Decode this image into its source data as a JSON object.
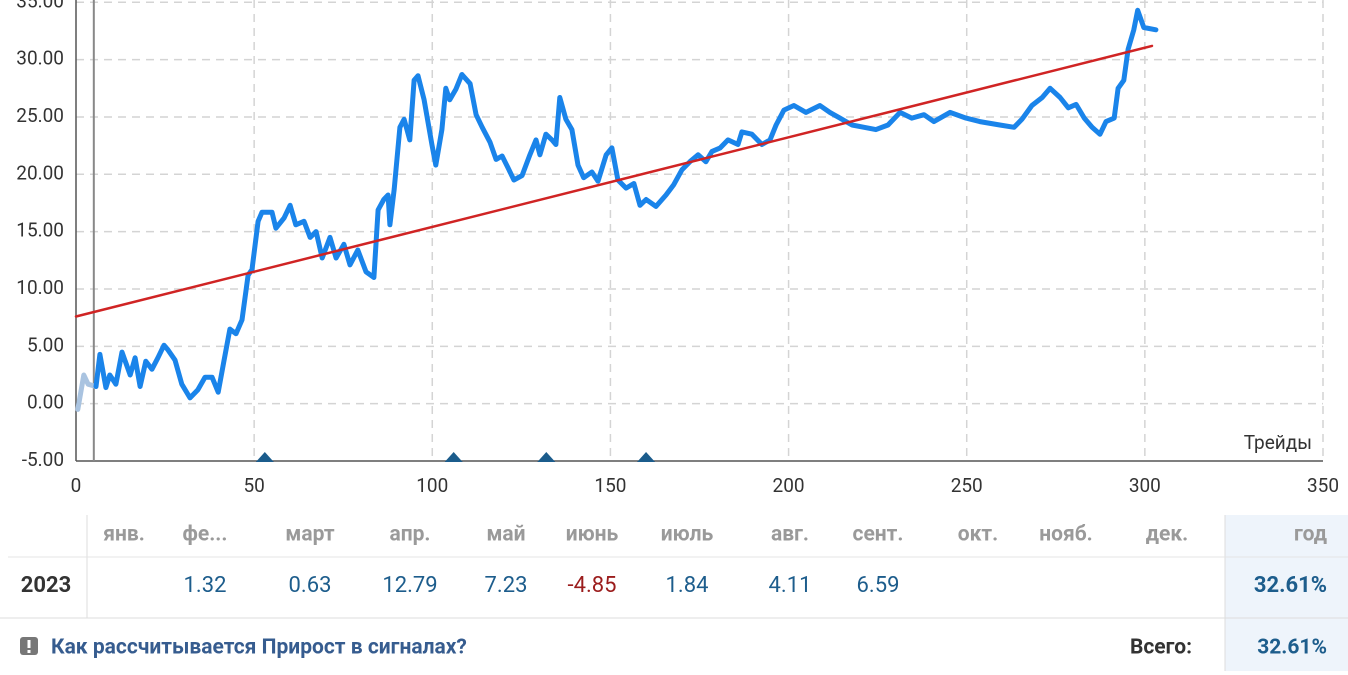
{
  "chart_data": {
    "type": "line",
    "x_label": "Трейды",
    "xlim": [
      0,
      350
    ],
    "xticks": [
      0,
      50,
      100,
      150,
      200,
      250,
      300,
      350
    ],
    "ylim": [
      -5,
      35.2
    ],
    "yticks": [
      {
        "value": -5,
        "label": "-5.00"
      },
      {
        "value": 0,
        "label": "0.00"
      },
      {
        "value": 5,
        "label": "5.00"
      },
      {
        "value": 10,
        "label": "10.00"
      },
      {
        "value": 15,
        "label": "15.00"
      },
      {
        "value": 20,
        "label": "20.00"
      },
      {
        "value": 25,
        "label": "25.00"
      },
      {
        "value": 30,
        "label": "30.00"
      },
      {
        "value": 35,
        "label": "35.00"
      }
    ],
    "grid": true,
    "series": [
      {
        "color": "#a9c3e0",
        "x": [
          0.5,
          2.2,
          3.4,
          5.6
        ],
        "values": [
          -0.5,
          2.5,
          1.7,
          1.5
        ]
      },
      {
        "color": "#1a84ea",
        "x": [
          5.6,
          6.7,
          8.4,
          9.5,
          11.2,
          12.9,
          15.2,
          16.6,
          18,
          19.6,
          21.3,
          23,
          24.7,
          25.8,
          27.8,
          29.7,
          32,
          34.2,
          36.2,
          38.2,
          39.9,
          41.5,
          43.2,
          44.9,
          46.6,
          48.3,
          49.4,
          51.1,
          52.2,
          55,
          56.1,
          58.4,
          60.1,
          61.7,
          64,
          65.7,
          67.4,
          69.1,
          71.3,
          73,
          75.2,
          76.9,
          79.1,
          81.4,
          83.6,
          84.8,
          86.4,
          87.6,
          88.1,
          89.3,
          90.9,
          92.1,
          93.7,
          94.9,
          96,
          97.7,
          99.9,
          101,
          102.7,
          103.8,
          104.9,
          106.6,
          108.3,
          110.6,
          112.3,
          114,
          116.2,
          117.9,
          119.6,
          121.2,
          122.9,
          125.2,
          127.4,
          129.1,
          130.2,
          131.9,
          133.6,
          134.7,
          135.8,
          137.5,
          139.2,
          140.9,
          142.5,
          144.8,
          146.5,
          148.8,
          150.4,
          152.1,
          154.4,
          156.6,
          158.3,
          160,
          162.8,
          165.6,
          167.8,
          170.1,
          172.3,
          174.6,
          176.8,
          178.5,
          180.8,
          183,
          185.8,
          186.9,
          189.7,
          192.5,
          194.8,
          196.5,
          198.7,
          201.5,
          204.9,
          208.8,
          211.6,
          214.4,
          217.8,
          221.2,
          224.5,
          227.9,
          231.3,
          234.6,
          238,
          240.8,
          245.3,
          249.8,
          253.7,
          259.3,
          263.3,
          265.5,
          268.3,
          271.2,
          273.4,
          276.2,
          278.5,
          280.7,
          283,
          285.2,
          287.4,
          289.1,
          291.4,
          292.5,
          294.1,
          295.3,
          296.9,
          298,
          299.7,
          303.1
        ],
        "values": [
          1.5,
          4.3,
          1.4,
          2.5,
          1.7,
          4.5,
          2.5,
          4,
          1.5,
          3.7,
          3,
          4,
          5.1,
          4.7,
          3.8,
          1.7,
          0.5,
          1.2,
          2.3,
          2.3,
          1,
          3.7,
          6.5,
          6.1,
          7.3,
          11.2,
          11.7,
          15.9,
          16.7,
          16.7,
          15.3,
          16.2,
          17.3,
          15.6,
          15.9,
          14.5,
          15,
          12.7,
          14.5,
          12.7,
          13.9,
          12.1,
          13.4,
          11.5,
          11,
          16.9,
          17.8,
          18.2,
          15.6,
          18.7,
          24.1,
          24.8,
          23,
          28.2,
          28.6,
          26.5,
          22.6,
          20.8,
          23.9,
          27.5,
          26.5,
          27.4,
          28.7,
          27.9,
          25.2,
          24.1,
          22.8,
          21.3,
          21.6,
          20.6,
          19.5,
          19.9,
          21.7,
          23,
          21.7,
          23.5,
          23,
          22.6,
          26.7,
          24.8,
          23.9,
          20.8,
          19.7,
          20.2,
          19.4,
          21.7,
          22.3,
          19.5,
          18.8,
          19.2,
          17.3,
          17.8,
          17.2,
          18.2,
          19.1,
          20.4,
          21.1,
          21.7,
          21.1,
          22,
          22.3,
          23,
          22.6,
          23.7,
          23.5,
          22.6,
          23,
          24.3,
          25.6,
          26,
          25.4,
          26,
          25.4,
          24.9,
          24.3,
          24.1,
          23.9,
          24.3,
          25.4,
          24.9,
          25.2,
          24.6,
          25.4,
          24.9,
          24.6,
          24.3,
          24.1,
          24.8,
          26,
          26.7,
          27.5,
          26.7,
          25.8,
          26.1,
          24.9,
          24.1,
          23.5,
          24.6,
          24.9,
          27.5,
          28.2,
          30.9,
          32.6,
          34.3,
          32.8,
          32.6
        ]
      }
    ],
    "trendline": {
      "color": "#d02424",
      "x": [
        0,
        302
      ],
      "values": [
        7.6,
        31.2
      ]
    },
    "vline": 5,
    "markers": {
      "color": "#1b5c8c",
      "x": [
        53,
        106,
        132,
        160
      ]
    }
  },
  "table": {
    "columns": [
      null,
      "янв.",
      "фе...",
      "март",
      "апр.",
      "май",
      "июнь",
      "июль",
      "авг.",
      "сент.",
      "окт.",
      "нояб.",
      "дек.",
      "год"
    ],
    "rows": [
      [
        "2023",
        null,
        "1.32",
        "0.63",
        "12.79",
        "7.23",
        "-4.85",
        "1.84",
        "4.11",
        "6.59",
        null,
        null,
        null,
        "32.61%"
      ]
    ]
  },
  "footer": {
    "link": "Как рассчитывается Прирост в сигналах?",
    "total_label": "Всего:",
    "total_value": "32.61%"
  }
}
